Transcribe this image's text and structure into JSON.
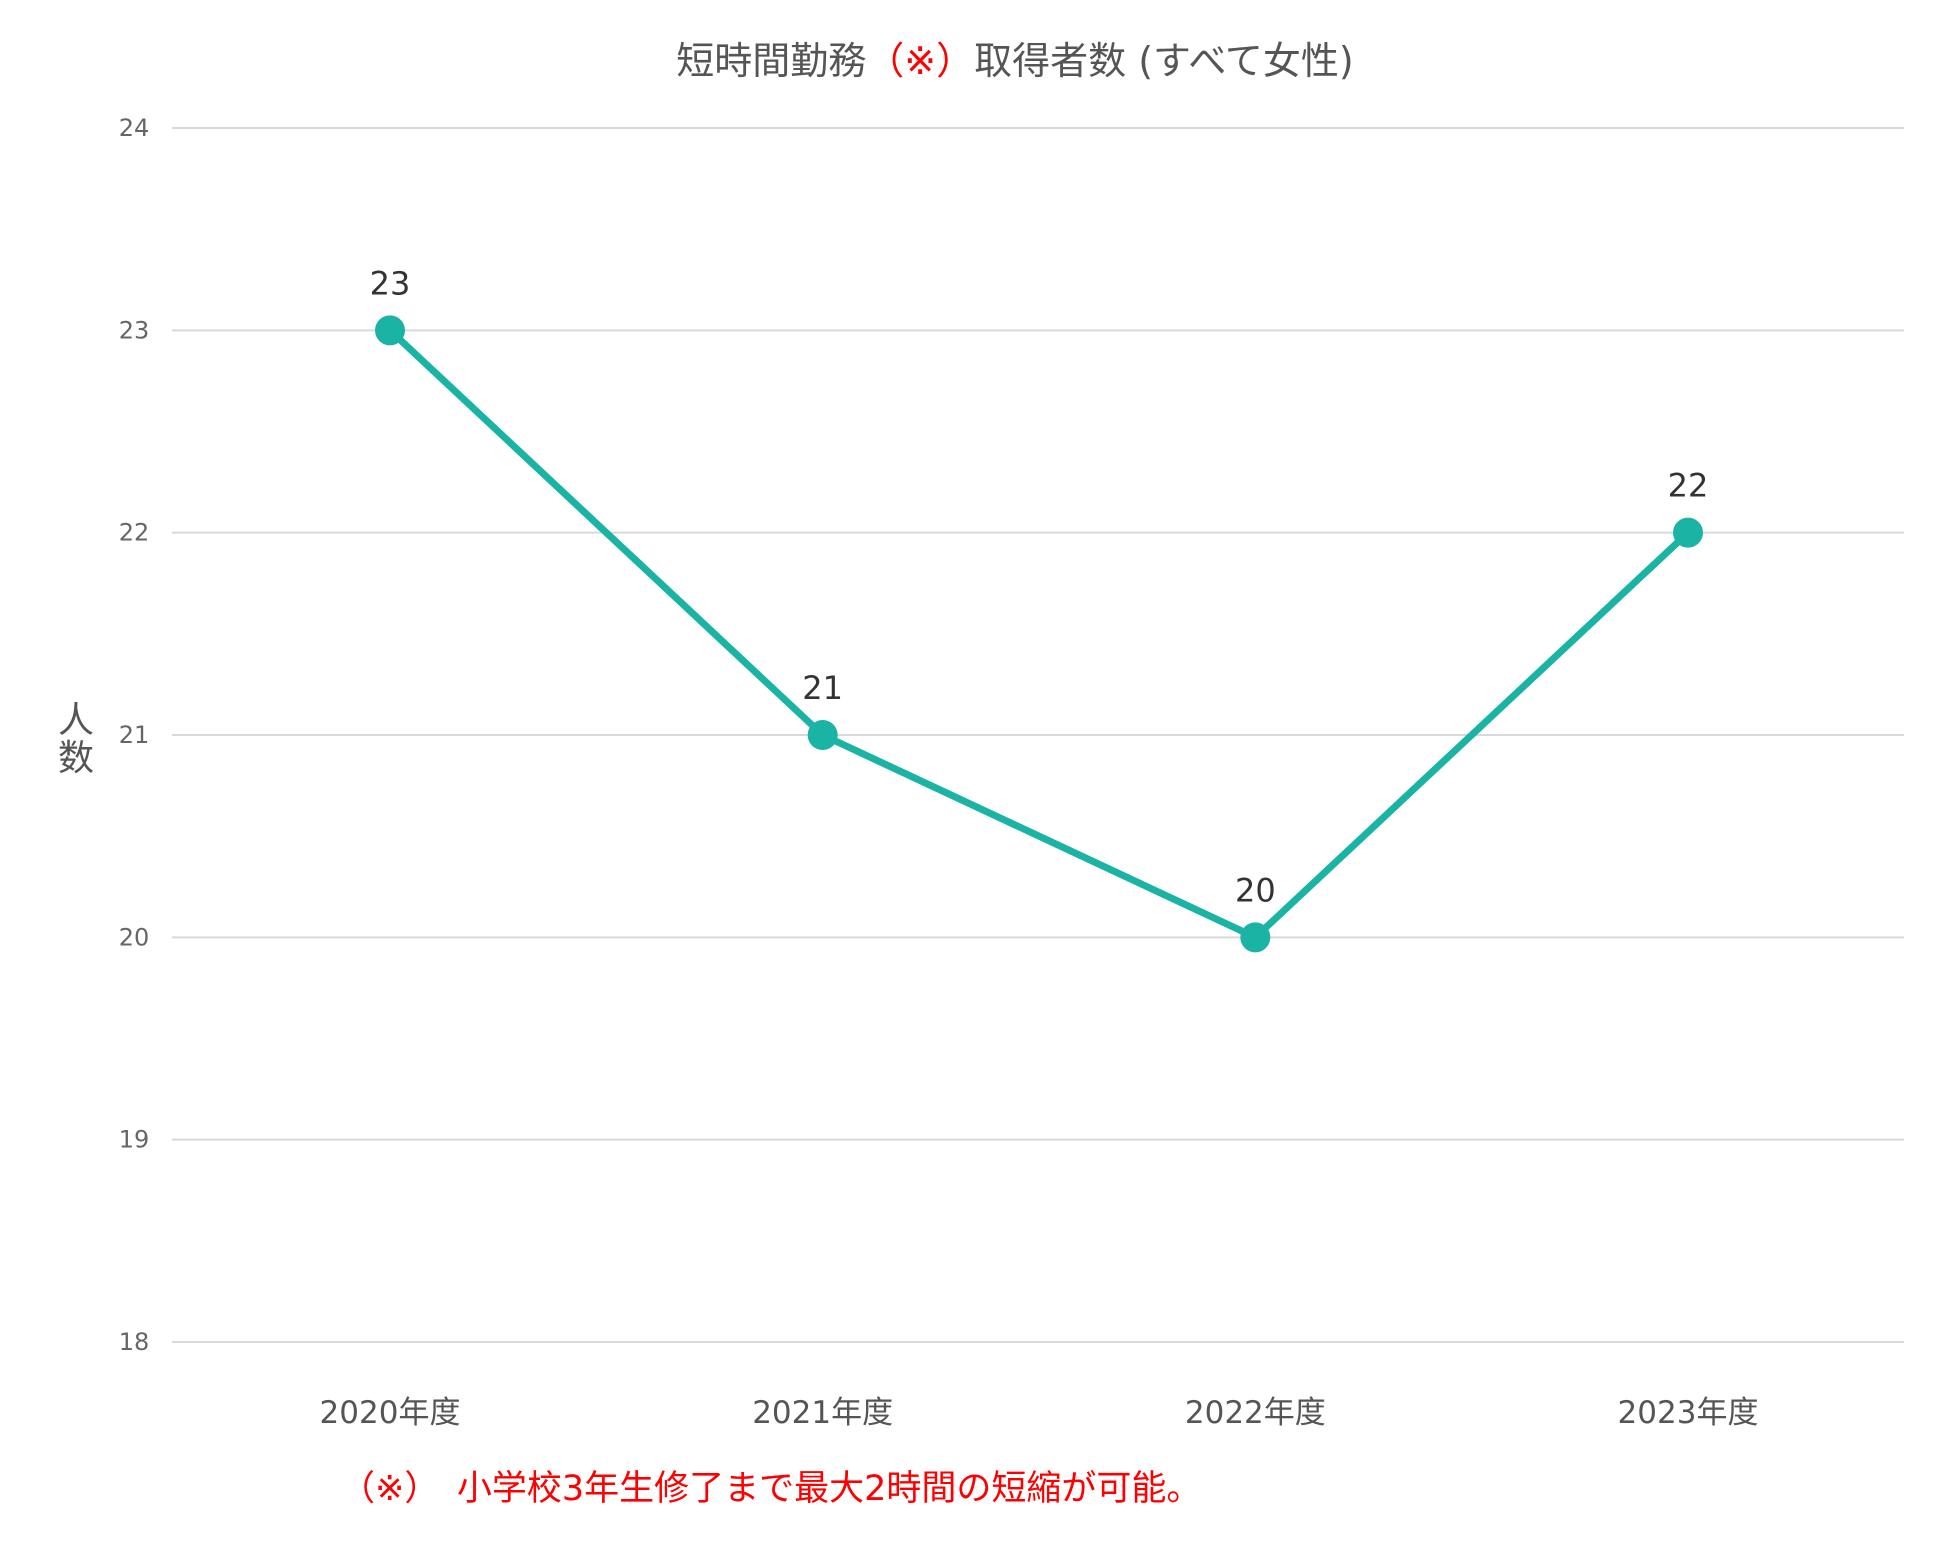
{
  "chart_data": {
    "type": "line",
    "title": {
      "before": "短時間勤務",
      "mark": "（※）",
      "after": "取得者数 (すべて女性)"
    },
    "ylabel": "人数",
    "xlabel": "",
    "categories": [
      "2020年度",
      "2021年度",
      "2022年度",
      "2023年度"
    ],
    "series": [
      {
        "values": [
          23,
          21,
          20,
          22
        ],
        "color": "#1ab3a4"
      }
    ],
    "ylim": [
      18,
      24
    ],
    "yticks": [
      18,
      19,
      20,
      21,
      22,
      23,
      24
    ],
    "grid": true,
    "data_labels": true,
    "footnote": "（※）　小学校3年生修了まで最大2時間の短縮が可能。",
    "colors": {
      "series": "#1ab3a4",
      "title": "#555555",
      "title_mark": "#ff0000",
      "footnote": "#ff0000",
      "grid": "#d9d9d9"
    }
  }
}
